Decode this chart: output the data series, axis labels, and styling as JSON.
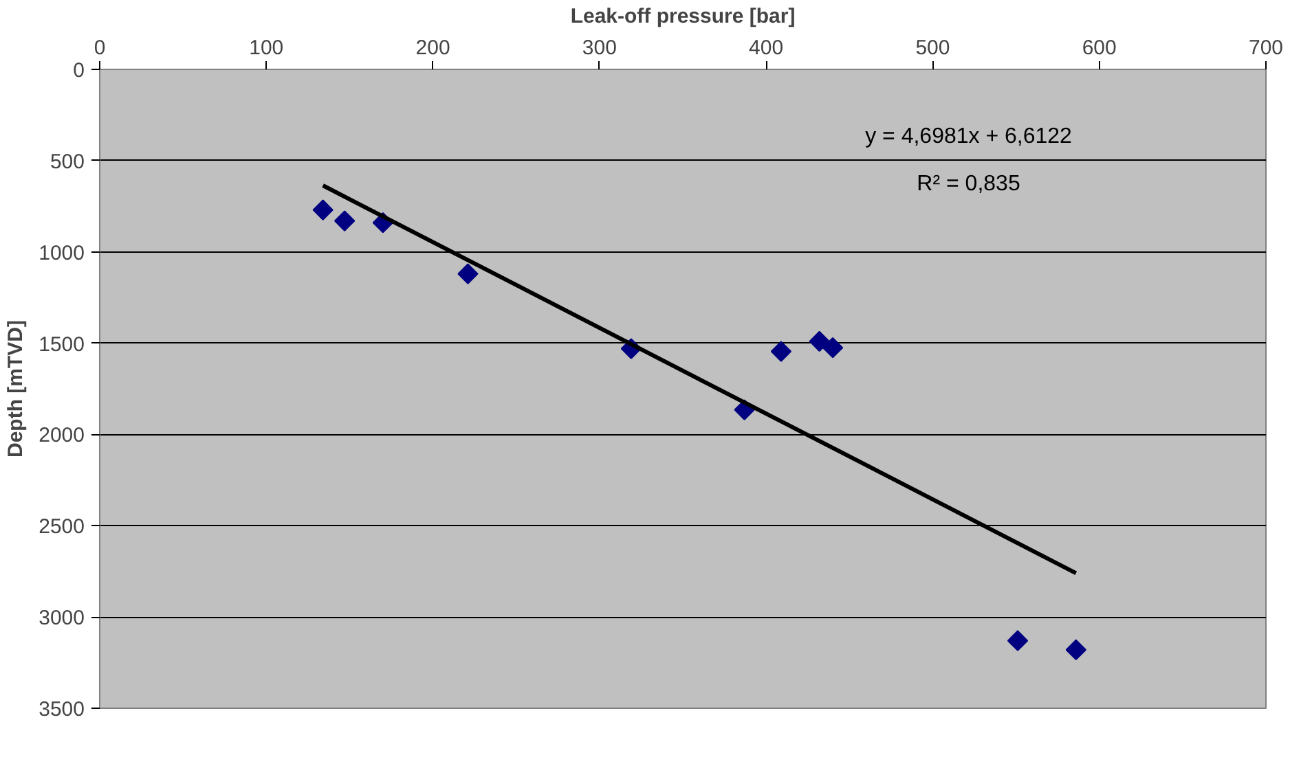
{
  "chart_data": {
    "type": "scatter",
    "xlabel": "Leak-off pressure [bar]",
    "ylabel": "Depth [mTVD]",
    "xlim": [
      0,
      700
    ],
    "xticks": [
      0,
      100,
      200,
      300,
      400,
      500,
      600,
      700
    ],
    "ylim": [
      3500,
      0
    ],
    "yticks": [
      0,
      500,
      1000,
      1500,
      2000,
      2500,
      3000,
      3500
    ],
    "grid": "y",
    "series": [
      {
        "marker": "diamond",
        "color": "#000080",
        "x": [
          134,
          147,
          170,
          221,
          319,
          387,
          409,
          432,
          440,
          551,
          586
        ],
        "values": [
          770,
          830,
          840,
          1120,
          1530,
          1865,
          1545,
          1490,
          1525,
          3130,
          3180
        ]
      },
      {
        "type": "line",
        "color": "#000000",
        "x": [
          134,
          586
        ],
        "values": [
          636,
          2760
        ]
      }
    ],
    "annotations": [
      "y = 4,6981x + 6,6122",
      "R² = 0,835"
    ]
  }
}
